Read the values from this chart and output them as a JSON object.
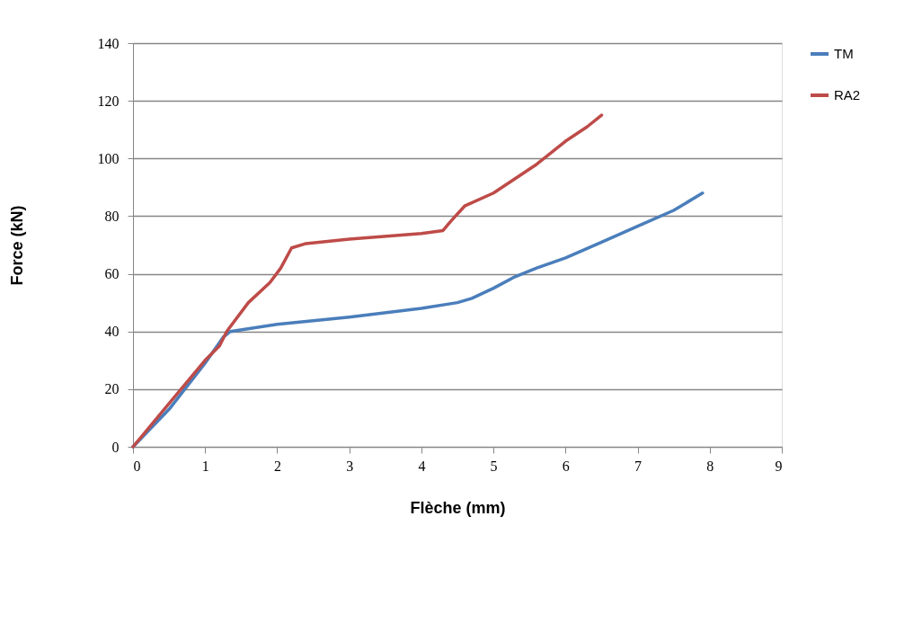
{
  "chart_data": {
    "type": "line",
    "xlabel": "Flèche (mm)",
    "ylabel": "Force (kN)",
    "xlim": [
      0,
      9
    ],
    "xticks": [
      0,
      1,
      2,
      3,
      4,
      5,
      6,
      7,
      8,
      9
    ],
    "ylim": [
      0,
      140
    ],
    "yticks": [
      0,
      20,
      40,
      60,
      80,
      100,
      120,
      140
    ],
    "grid": "y",
    "legend": "right",
    "marker": "none",
    "line_style": "solid",
    "series": [
      {
        "name": "TM",
        "color": "#4a7ebb",
        "x": [
          0,
          0.5,
          1.0,
          1.25,
          1.35,
          2,
          3,
          4,
          4.5,
          4.7,
          5,
          5.3,
          5.6,
          6,
          6.5,
          7,
          7.5,
          7.9
        ],
        "values": [
          0,
          13,
          29,
          38,
          40,
          42.5,
          45,
          48,
          50,
          51.5,
          55,
          59,
          62,
          65.5,
          71,
          76.5,
          82,
          88
        ]
      },
      {
        "name": "RA2",
        "color": "#be4b48",
        "x": [
          0,
          0.5,
          1,
          1.2,
          1.3,
          1.6,
          1.9,
          2.05,
          2.2,
          2.4,
          3,
          4,
          4.3,
          4.4,
          4.6,
          5,
          5.3,
          5.6,
          5.8,
          6,
          6.3,
          6.5
        ],
        "values": [
          0,
          15,
          30,
          35,
          40,
          50,
          57,
          62,
          69,
          70.5,
          72,
          74,
          75,
          78,
          83.5,
          88,
          93,
          98,
          102,
          106,
          111,
          115
        ]
      }
    ]
  }
}
